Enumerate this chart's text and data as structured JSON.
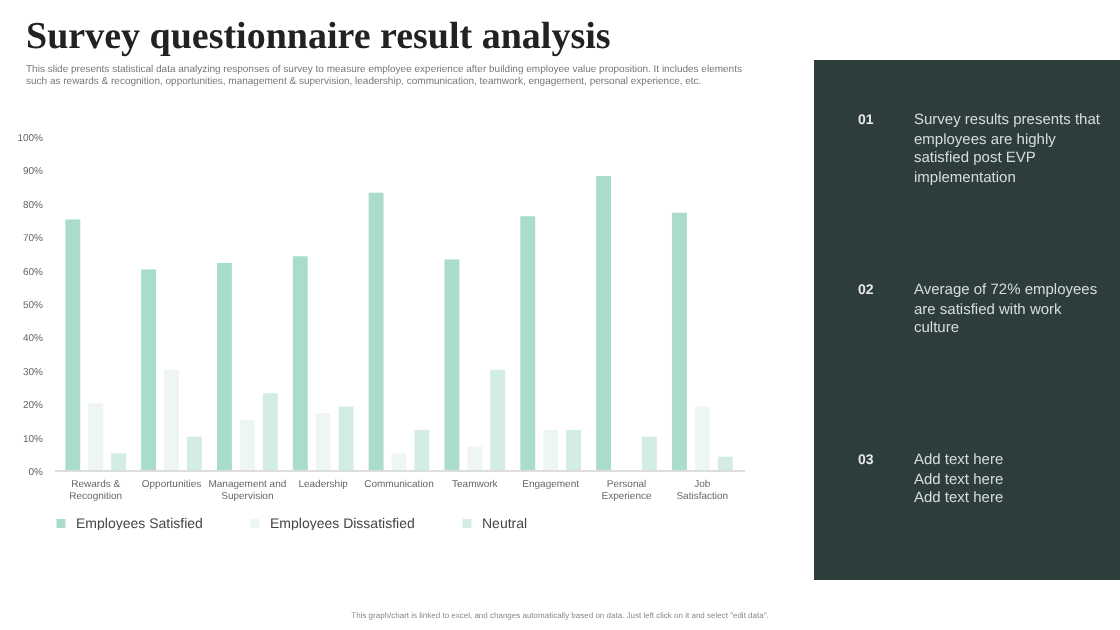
{
  "chart_data": {
    "type": "bar",
    "title": "Survey questionnaire result analysis",
    "subtitle": "This slide presents statistical data analyzing responses of survey to measure employee experience after building employee value proposition. It includes elements such as rewards & recognition, opportunities, management & supervision, leadership, communication, teamwork, engagement, personal experience, etc.",
    "categories": [
      "Rewards & Recognition",
      "Opportunities",
      "Management and Supervision",
      "Leadership",
      "Communication",
      "Teamwork",
      "Engagement",
      "Personal Experience",
      "Job Satisfaction"
    ],
    "series": [
      {
        "name": "Employees Satisfied",
        "color": "#a9dcc9",
        "values": [
          75,
          60,
          62,
          64,
          83,
          63,
          76,
          88,
          77
        ]
      },
      {
        "name": "Employees Dissatisfied",
        "color": "#eef6f2",
        "values": [
          20,
          30,
          15,
          17,
          5,
          7,
          12,
          null,
          19
        ]
      },
      {
        "name": "Neutral",
        "color": "#d3ede2",
        "values": [
          5,
          10,
          23,
          19,
          12,
          30,
          12,
          10,
          4
        ]
      }
    ],
    "ylim": [
      0,
      100
    ],
    "yticks": [
      {
        "value": 0,
        "label": "0%"
      },
      {
        "value": 10,
        "label": "10%"
      },
      {
        "value": 20,
        "label": "20%"
      },
      {
        "value": 30,
        "label": "30%"
      },
      {
        "value": 40,
        "label": "40%"
      },
      {
        "value": 50,
        "label": "50%"
      },
      {
        "value": 60,
        "label": "60%"
      },
      {
        "value": 70,
        "label": "70%"
      },
      {
        "value": 80,
        "label": "80%"
      },
      {
        "value": 90,
        "label": "90%"
      },
      {
        "value": 100,
        "label": "100%"
      }
    ],
    "legend": "bottom",
    "annotations": [
      "01",
      "Survey results presents that employees are highly satisfied post EVP implementation",
      "02",
      "Average of 72% employees are satisfied with work culture",
      "03",
      "Add text here\nAdd text here\nAdd text here",
      "This graph/chart is linked to excel, and changes automatically based on data. Just left click on it and select \"edit data\"."
    ]
  }
}
